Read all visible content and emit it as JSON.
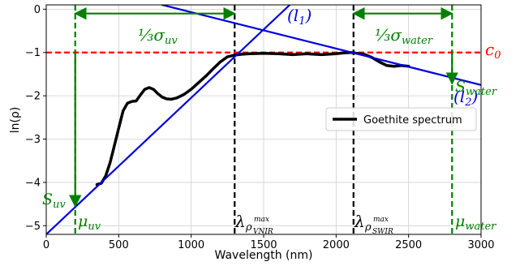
{
  "chart_data": {
    "type": "line",
    "xlabel": "Wavelength (nm)",
    "ylabel": "ln(ρ)",
    "xlim": [
      0,
      3000
    ],
    "ylim": [
      -5.2,
      0.1
    ],
    "xticks": [
      0,
      500,
      1000,
      1500,
      2000,
      2500,
      3000
    ],
    "xtick_labels": [
      "0",
      "500",
      "1000",
      "1500",
      "2000",
      "2500",
      "3000"
    ],
    "yticks": [
      0,
      -1,
      -2,
      -3,
      -4,
      -5
    ],
    "ytick_labels": [
      "0",
      "−1",
      "−2",
      "−3",
      "−4",
      "−5"
    ],
    "grid": true,
    "legend": {
      "placement": "center-right",
      "entries": [
        "Goethite spectrum"
      ]
    },
    "series": [
      {
        "name": "Goethite spectrum",
        "color": "#000000",
        "x": [
          350,
          380,
          410,
          440,
          470,
          500,
          530,
          560,
          590,
          620,
          650,
          680,
          710,
          740,
          770,
          800,
          830,
          860,
          900,
          950,
          1000,
          1050,
          1100,
          1150,
          1200,
          1250,
          1300,
          1350,
          1400,
          1500,
          1600,
          1700,
          1800,
          1900,
          2000,
          2050,
          2100,
          2150,
          2200,
          2250,
          2300,
          2350,
          2400,
          2450,
          2500
        ],
        "y": [
          -4.05,
          -4.02,
          -3.85,
          -3.55,
          -3.15,
          -2.75,
          -2.35,
          -2.17,
          -2.13,
          -2.12,
          -1.98,
          -1.85,
          -1.81,
          -1.85,
          -1.95,
          -2.03,
          -2.07,
          -2.08,
          -2.05,
          -1.97,
          -1.85,
          -1.7,
          -1.55,
          -1.38,
          -1.22,
          -1.1,
          -1.06,
          -1.04,
          -1.03,
          -1.02,
          -1.03,
          -1.05,
          -1.03,
          -1.05,
          -1.03,
          -1.01,
          -1.0,
          -1.02,
          -1.05,
          -1.12,
          -1.22,
          -1.3,
          -1.32,
          -1.3,
          -1.32
        ]
      },
      {
        "name": "(l1)",
        "color": "#0000dd",
        "x": [
          0,
          1680
        ],
        "y": [
          -5.2,
          0.1
        ]
      },
      {
        "name": "(l2)",
        "color": "#0000dd",
        "x": [
          800,
          3000
        ],
        "y": [
          0.1,
          -1.75
        ]
      }
    ],
    "hlines": [
      {
        "y": -1.0,
        "color": "#ff0000",
        "style": "dashed"
      }
    ],
    "vlines": [
      {
        "x": 200,
        "color": "#008000",
        "style": "dashed"
      },
      {
        "x": 1300,
        "color": "#000000",
        "style": "dashed"
      },
      {
        "x": 2120,
        "color": "#000000",
        "style": "dashed"
      },
      {
        "x": 2800,
        "color": "#008000",
        "style": "dashed"
      }
    ],
    "arrows": [
      {
        "from": [
          200,
          -0.1
        ],
        "to": [
          1300,
          -0.1
        ],
        "color": "#008000",
        "double": true
      },
      {
        "from": [
          2120,
          -0.1
        ],
        "to": [
          2800,
          -0.1
        ],
        "color": "#008000",
        "double": true
      },
      {
        "from": [
          200,
          -0.97
        ],
        "to": [
          200,
          -4.55
        ],
        "color": "#008000"
      },
      {
        "from": [
          2800,
          -0.97
        ],
        "to": [
          2800,
          -1.72
        ],
        "color": "#008000"
      }
    ],
    "annotations": {
      "sigma_uv": "⅓σ",
      "sigma_uv_sub": "uv",
      "sigma_water": "⅓σ",
      "sigma_water_sub": "water",
      "c0": "c",
      "c0_sub": "0",
      "l1": "(l",
      "l1_sub": "1",
      "l1_close": ")",
      "l2": "(l",
      "l2_sub": "2",
      "l2_close": ")",
      "s_water": "S",
      "s_water_sub": "water",
      "s_uv": "S",
      "s_uv_sub": "uv",
      "mu_uv": "μ",
      "mu_uv_sub": "uv",
      "mu_water": "μ",
      "mu_water_sub": "water",
      "lambda": "λ",
      "rho": "ρ",
      "max": "max",
      "vnir": "VNIR",
      "swir": "SWIR"
    }
  }
}
